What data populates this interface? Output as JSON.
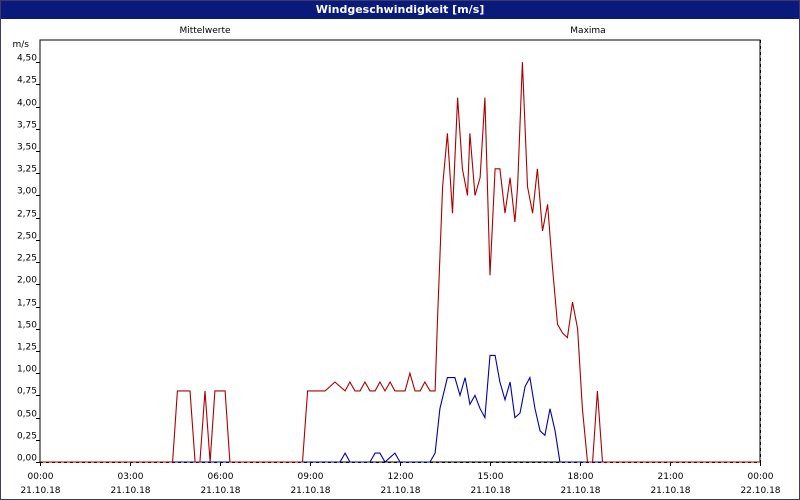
{
  "window": {
    "title": "Windgeschwindigkeit [m/s]"
  },
  "chart_data": {
    "type": "line",
    "title": "Windgeschwindigkeit [m/s]",
    "ylabel": "m/s",
    "ylim": [
      0,
      4.75
    ],
    "xlim_hours": [
      0,
      24
    ],
    "grid": true,
    "legend_placement": "top",
    "y_ticks": [
      "0,00",
      "0,25",
      "0,50",
      "0,75",
      "1,00",
      "1,25",
      "1,50",
      "1,75",
      "2,00",
      "2,25",
      "2,50",
      "2,75",
      "3,00",
      "3,25",
      "3,50",
      "3,75",
      "4,00",
      "4,25",
      "4,50"
    ],
    "x_ticks": [
      {
        "time": "00:00",
        "date": "21.10.18"
      },
      {
        "time": "03:00",
        "date": "21.10.18"
      },
      {
        "time": "06:00",
        "date": "21.10.18"
      },
      {
        "time": "09:00",
        "date": "21.10.18"
      },
      {
        "time": "12:00",
        "date": "21.10.18"
      },
      {
        "time": "15:00",
        "date": "21.10.18"
      },
      {
        "time": "18:00",
        "date": "21.10.18"
      },
      {
        "time": "21:00",
        "date": "21.10.18"
      },
      {
        "time": "00:00",
        "date": "22.10.18"
      }
    ],
    "series": [
      {
        "name": "Mittelwerte",
        "color": "#0000aa",
        "points": [
          [
            0,
            0
          ],
          [
            10.0,
            0
          ],
          [
            10.17,
            0.1
          ],
          [
            10.33,
            0
          ],
          [
            11.0,
            0
          ],
          [
            11.17,
            0.1
          ],
          [
            11.33,
            0.1
          ],
          [
            11.5,
            0
          ],
          [
            11.83,
            0.1
          ],
          [
            12.0,
            0
          ],
          [
            13.0,
            0
          ],
          [
            13.17,
            0.1
          ],
          [
            13.33,
            0.6
          ],
          [
            13.58,
            0.95
          ],
          [
            13.83,
            0.95
          ],
          [
            14.0,
            0.75
          ],
          [
            14.17,
            0.95
          ],
          [
            14.33,
            0.65
          ],
          [
            14.5,
            0.75
          ],
          [
            14.67,
            0.6
          ],
          [
            14.83,
            0.5
          ],
          [
            15.0,
            1.2
          ],
          [
            15.17,
            1.2
          ],
          [
            15.33,
            0.9
          ],
          [
            15.5,
            0.7
          ],
          [
            15.67,
            0.9
          ],
          [
            15.83,
            0.5
          ],
          [
            16.0,
            0.55
          ],
          [
            16.17,
            0.85
          ],
          [
            16.33,
            0.95
          ],
          [
            16.5,
            0.6
          ],
          [
            16.67,
            0.35
          ],
          [
            16.83,
            0.3
          ],
          [
            17.0,
            0.6
          ],
          [
            17.17,
            0.35
          ],
          [
            17.33,
            0
          ],
          [
            24,
            0
          ]
        ]
      },
      {
        "name": "Maxima",
        "color": "#aa0000",
        "points": [
          [
            0,
            0
          ],
          [
            4.42,
            0
          ],
          [
            4.58,
            0.8
          ],
          [
            5.0,
            0.8
          ],
          [
            5.17,
            0
          ],
          [
            5.33,
            0
          ],
          [
            5.5,
            0.8
          ],
          [
            5.67,
            0
          ],
          [
            5.83,
            0.8
          ],
          [
            6.17,
            0.8
          ],
          [
            6.33,
            0
          ],
          [
            8.75,
            0
          ],
          [
            8.92,
            0.8
          ],
          [
            9.5,
            0.8
          ],
          [
            9.67,
            0.85
          ],
          [
            9.83,
            0.9
          ],
          [
            10.0,
            0.85
          ],
          [
            10.17,
            0.8
          ],
          [
            10.33,
            0.9
          ],
          [
            10.5,
            0.8
          ],
          [
            10.67,
            0.8
          ],
          [
            10.83,
            0.9
          ],
          [
            11.0,
            0.8
          ],
          [
            11.17,
            0.8
          ],
          [
            11.33,
            0.9
          ],
          [
            11.5,
            0.8
          ],
          [
            11.67,
            0.9
          ],
          [
            11.83,
            0.8
          ],
          [
            12.0,
            0.8
          ],
          [
            12.17,
            0.8
          ],
          [
            12.33,
            1.0
          ],
          [
            12.5,
            0.8
          ],
          [
            12.67,
            0.8
          ],
          [
            12.83,
            0.9
          ],
          [
            13.0,
            0.8
          ],
          [
            13.17,
            0.8
          ],
          [
            13.25,
            1.6
          ],
          [
            13.42,
            3.1
          ],
          [
            13.58,
            3.7
          ],
          [
            13.75,
            2.8
          ],
          [
            13.92,
            4.1
          ],
          [
            14.08,
            3.3
          ],
          [
            14.25,
            3.0
          ],
          [
            14.33,
            3.7
          ],
          [
            14.5,
            3.0
          ],
          [
            14.67,
            3.2
          ],
          [
            14.83,
            4.1
          ],
          [
            15.0,
            2.1
          ],
          [
            15.17,
            3.3
          ],
          [
            15.33,
            3.3
          ],
          [
            15.5,
            2.8
          ],
          [
            15.67,
            3.2
          ],
          [
            15.83,
            2.7
          ],
          [
            15.92,
            3.1
          ],
          [
            16.08,
            4.5
          ],
          [
            16.25,
            3.1
          ],
          [
            16.42,
            2.8
          ],
          [
            16.58,
            3.3
          ],
          [
            16.75,
            2.6
          ],
          [
            16.92,
            2.9
          ],
          [
            17.08,
            2.2
          ],
          [
            17.25,
            1.55
          ],
          [
            17.42,
            1.45
          ],
          [
            17.58,
            1.4
          ],
          [
            17.75,
            1.8
          ],
          [
            17.92,
            1.5
          ],
          [
            18.08,
            0.6
          ],
          [
            18.25,
            0
          ],
          [
            18.42,
            0
          ],
          [
            18.58,
            0.8
          ],
          [
            18.75,
            0
          ],
          [
            24.0,
            0
          ],
          [
            23.83,
            0
          ],
          [
            24.0,
            0
          ]
        ]
      }
    ]
  }
}
